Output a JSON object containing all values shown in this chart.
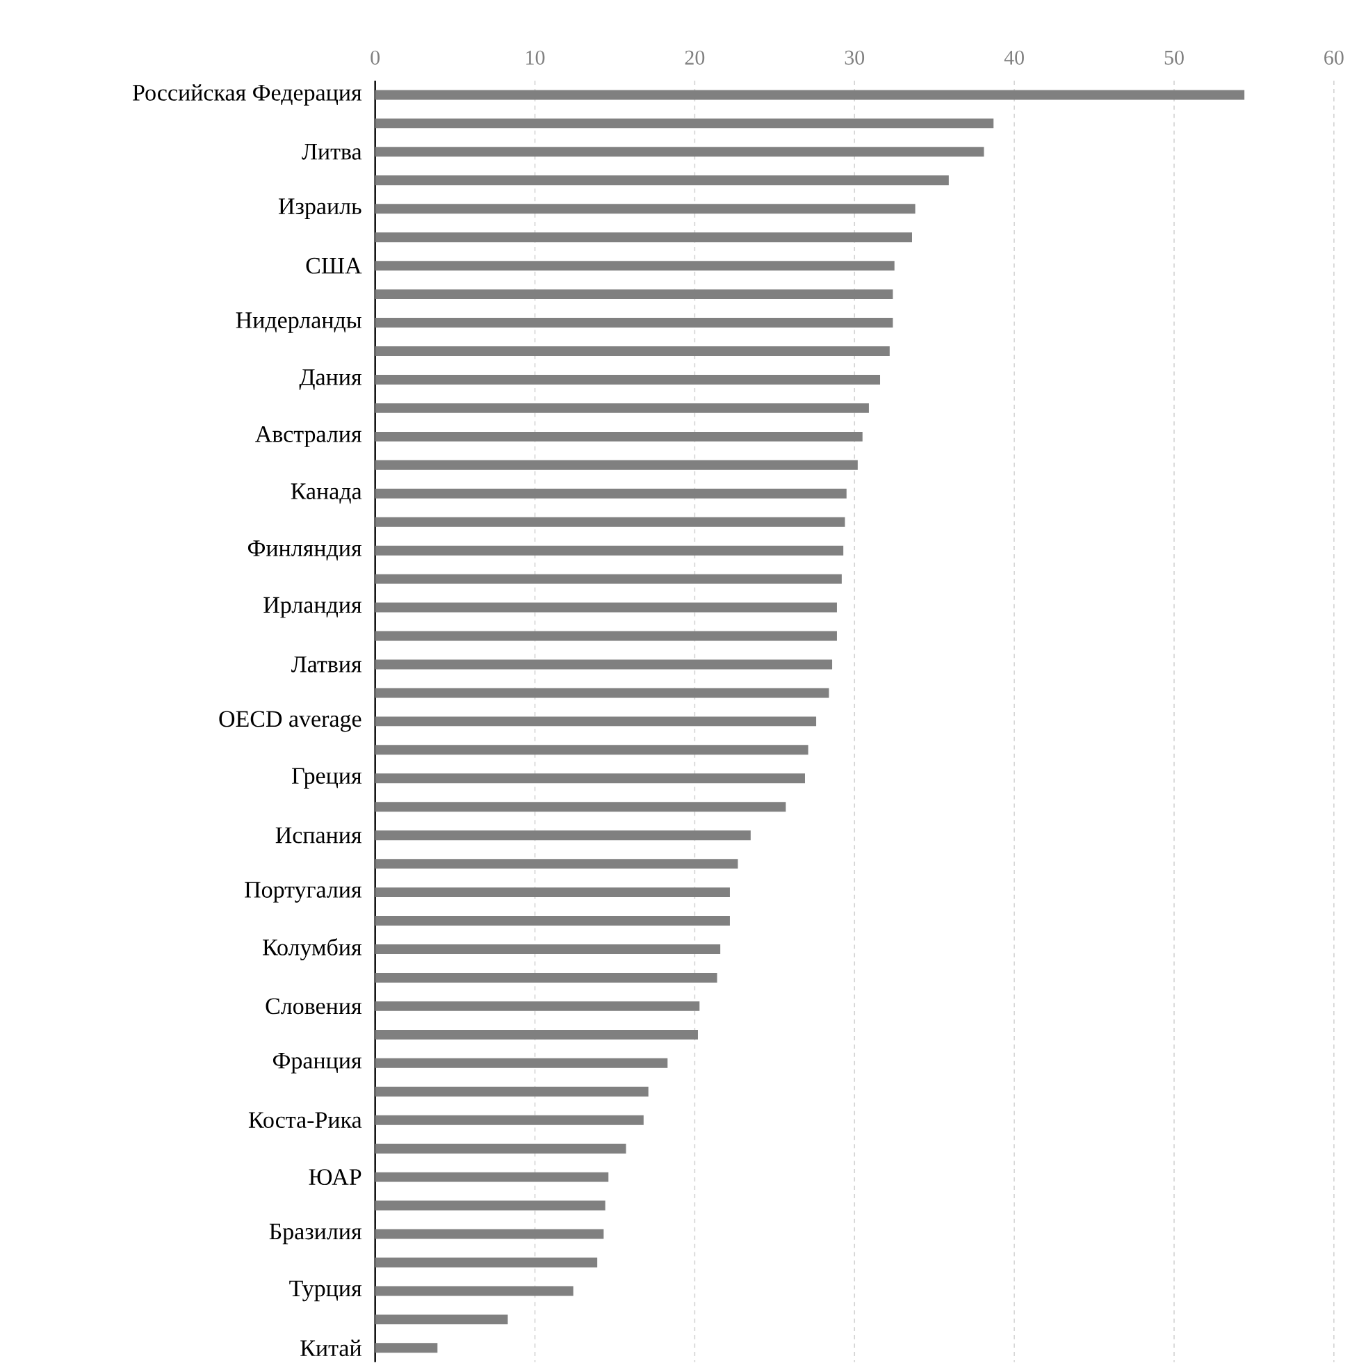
{
  "chart_data": {
    "type": "bar",
    "orientation": "horizontal",
    "categories": [
      "Российская Федерация",
      null,
      "Литва",
      null,
      "Израиль",
      null,
      "США",
      null,
      "Нидерланды",
      null,
      "Дания",
      null,
      "Австралия",
      null,
      "Канада",
      null,
      "Финляндия",
      null,
      "Ирландия",
      null,
      "Латвия",
      null,
      "OECD average",
      null,
      "Греция",
      null,
      "Испания",
      null,
      "Португалия",
      null,
      "Колумбия",
      null,
      "Словения",
      null,
      "Франция",
      null,
      "Коста-Рика",
      null,
      "ЮАР",
      null,
      "Бразилия",
      null,
      "Турция",
      null,
      "Китай"
    ],
    "values": [
      54.4,
      38.7,
      38.1,
      35.9,
      33.8,
      33.6,
      32.5,
      32.4,
      32.4,
      32.2,
      31.6,
      30.9,
      30.5,
      30.2,
      29.5,
      29.4,
      29.3,
      29.2,
      28.9,
      28.9,
      28.6,
      28.4,
      27.6,
      27.1,
      26.9,
      25.7,
      23.5,
      22.7,
      22.2,
      22.2,
      21.6,
      21.4,
      20.3,
      20.2,
      18.3,
      17.1,
      16.8,
      15.7,
      14.6,
      14.4,
      14.3,
      13.9,
      12.4,
      8.3,
      3.9
    ],
    "color": "#808080",
    "xlim": [
      0,
      60
    ],
    "xticks": [
      0,
      10,
      20,
      30,
      40,
      50,
      60
    ],
    "grid": "x"
  }
}
